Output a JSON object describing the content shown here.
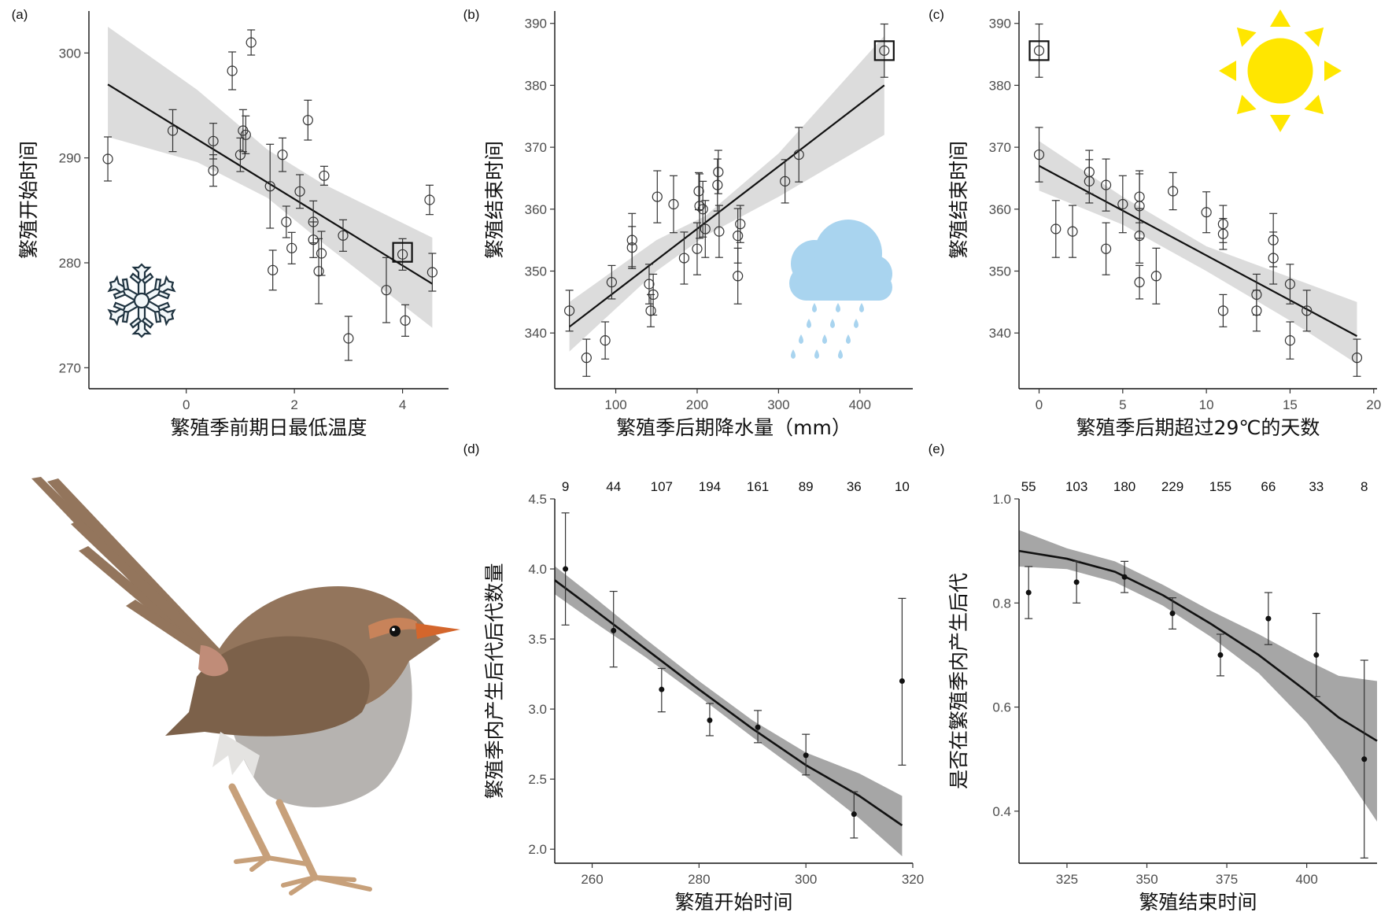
{
  "chart_data": [
    {
      "panel": "(a)",
      "type": "scatter",
      "xlabel": "繁殖季前期日最低温度",
      "ylabel": "繁殖开始时间",
      "xlim": [
        -1.8,
        4.85
      ],
      "ylim": [
        268,
        304
      ],
      "xticks": [
        0,
        2,
        4
      ],
      "yticks": [
        270,
        280,
        290,
        300
      ],
      "points": [
        {
          "x": -1.45,
          "y": 289.9,
          "err": 2.1
        },
        {
          "x": -0.25,
          "y": 292.6,
          "err": 2.0
        },
        {
          "x": 0.5,
          "y": 291.6,
          "err": 1.7
        },
        {
          "x": 0.5,
          "y": 288.8,
          "err": 1.5
        },
        {
          "x": 0.85,
          "y": 298.3,
          "err": 1.8
        },
        {
          "x": 1.0,
          "y": 290.3,
          "err": 1.6
        },
        {
          "x": 1.05,
          "y": 292.6,
          "err": 2.0
        },
        {
          "x": 1.1,
          "y": 292.2,
          "err": 1.8
        },
        {
          "x": 1.2,
          "y": 301.0,
          "err": 1.2
        },
        {
          "x": 1.55,
          "y": 287.3,
          "err": 4.0
        },
        {
          "x": 1.6,
          "y": 279.3,
          "err": 1.9
        },
        {
          "x": 1.78,
          "y": 290.3,
          "err": 1.6
        },
        {
          "x": 1.85,
          "y": 283.9,
          "err": 1.5
        },
        {
          "x": 1.95,
          "y": 281.4,
          "err": 1.5
        },
        {
          "x": 2.1,
          "y": 286.8,
          "err": 1.6
        },
        {
          "x": 2.25,
          "y": 293.6,
          "err": 1.9
        },
        {
          "x": 2.35,
          "y": 283.9,
          "err": 2.0
        },
        {
          "x": 2.35,
          "y": 282.2,
          "err": 1.7
        },
        {
          "x": 2.45,
          "y": 279.2,
          "err": 3.1
        },
        {
          "x": 2.5,
          "y": 280.9,
          "err": 2.1
        },
        {
          "x": 2.55,
          "y": 288.3,
          "err": 0.9
        },
        {
          "x": 2.9,
          "y": 282.6,
          "err": 1.5
        },
        {
          "x": 3.0,
          "y": 272.8,
          "err": 2.1
        },
        {
          "x": 3.7,
          "y": 277.4,
          "err": 3.1
        },
        {
          "x": 4.0,
          "y": 280.8,
          "err": 1.5
        },
        {
          "x": 4.05,
          "y": 274.5,
          "err": 1.5
        },
        {
          "x": 4.5,
          "y": 286.0,
          "err": 1.4
        },
        {
          "x": 4.55,
          "y": 279.1,
          "err": 1.8
        }
      ],
      "highlight": {
        "x": 4.0,
        "y": 281.0
      },
      "fit": {
        "x0": -1.45,
        "y0": 297.0,
        "x1": 4.55,
        "y1": 278.0
      },
      "band": [
        [
          -1.45,
          292.0,
          302.5
        ],
        [
          0.2,
          289.6,
          296.5
        ],
        [
          1.5,
          286.2,
          290.8
        ],
        [
          2.5,
          282.0,
          287.6
        ],
        [
          4.55,
          273.8,
          282.4
        ]
      ]
    },
    {
      "panel": "(b)",
      "type": "scatter",
      "xlabel": "繁殖季后期降水量（mm）",
      "ylabel": "繁殖结束时间",
      "xlim": [
        25,
        465
      ],
      "ylim": [
        331,
        392
      ],
      "xticks": [
        100,
        200,
        300,
        400
      ],
      "yticks": [
        340,
        350,
        360,
        370,
        380,
        390
      ],
      "points": [
        {
          "x": 43,
          "y": 343.6,
          "err": 3.3
        },
        {
          "x": 64,
          "y": 336.0,
          "err": 3.0
        },
        {
          "x": 87,
          "y": 338.8,
          "err": 3.0
        },
        {
          "x": 95,
          "y": 348.2,
          "err": 2.7
        },
        {
          "x": 120,
          "y": 355.0,
          "err": 4.3
        },
        {
          "x": 120,
          "y": 353.8,
          "err": 3.4
        },
        {
          "x": 141,
          "y": 347.9,
          "err": 3.2
        },
        {
          "x": 143,
          "y": 343.6,
          "err": 2.6
        },
        {
          "x": 146,
          "y": 346.2,
          "err": 3.3
        },
        {
          "x": 151,
          "y": 362.0,
          "err": 4.2
        },
        {
          "x": 171,
          "y": 360.8,
          "err": 4.6
        },
        {
          "x": 184,
          "y": 352.1,
          "err": 4.2
        },
        {
          "x": 200,
          "y": 353.6,
          "err": 4.2
        },
        {
          "x": 202,
          "y": 362.9,
          "err": 3.0
        },
        {
          "x": 203,
          "y": 360.5,
          "err": 5.2
        },
        {
          "x": 207,
          "y": 360.0,
          "err": 4.5
        },
        {
          "x": 210,
          "y": 356.8,
          "err": 4.6
        },
        {
          "x": 225,
          "y": 363.9,
          "err": 4.2
        },
        {
          "x": 226,
          "y": 366.0,
          "err": 3.5
        },
        {
          "x": 227,
          "y": 356.4,
          "err": 4.2
        },
        {
          "x": 250,
          "y": 355.7,
          "err": 4.4
        },
        {
          "x": 250,
          "y": 349.2,
          "err": 4.5
        },
        {
          "x": 253,
          "y": 357.6,
          "err": 3.0
        },
        {
          "x": 308,
          "y": 364.5,
          "err": 3.5
        },
        {
          "x": 325,
          "y": 368.8,
          "err": 4.4
        },
        {
          "x": 430,
          "y": 385.6,
          "err": 4.3
        }
      ],
      "highlight": {
        "x": 430,
        "y": 385.6
      },
      "fit": {
        "x0": 43,
        "y0": 341.0,
        "x1": 430,
        "y1": 380.0
      },
      "band": [
        [
          43,
          337.0,
          345.0
        ],
        [
          150,
          350.0,
          355.0
        ],
        [
          210,
          355.7,
          358.9
        ],
        [
          300,
          362.0,
          369.0
        ],
        [
          430,
          372.0,
          388.0
        ]
      ]
    },
    {
      "panel": "(c)",
      "type": "scatter",
      "xlabel": "繁殖季后期超过29℃的天数",
      "ylabel": "繁殖结束时间",
      "xlim": [
        -1.2,
        20.2
      ],
      "ylim": [
        331,
        392
      ],
      "xticks": [
        0,
        5,
        10,
        15,
        20
      ],
      "yticks": [
        340,
        350,
        360,
        370,
        380,
        390
      ],
      "points": [
        {
          "x": 0,
          "y": 385.6,
          "err": 4.3
        },
        {
          "x": 0,
          "y": 368.8,
          "err": 4.4
        },
        {
          "x": 1,
          "y": 356.8,
          "err": 4.6
        },
        {
          "x": 2,
          "y": 356.4,
          "err": 4.2
        },
        {
          "x": 3,
          "y": 366.0,
          "err": 3.5
        },
        {
          "x": 3,
          "y": 364.5,
          "err": 3.5
        },
        {
          "x": 4,
          "y": 363.9,
          "err": 4.2
        },
        {
          "x": 4,
          "y": 353.6,
          "err": 4.2
        },
        {
          "x": 5,
          "y": 360.8,
          "err": 4.6
        },
        {
          "x": 6,
          "y": 362.0,
          "err": 4.2
        },
        {
          "x": 6,
          "y": 360.5,
          "err": 5.2
        },
        {
          "x": 6,
          "y": 355.7,
          "err": 4.4
        },
        {
          "x": 6,
          "y": 348.2,
          "err": 2.7
        },
        {
          "x": 7,
          "y": 349.2,
          "err": 4.5
        },
        {
          "x": 8,
          "y": 362.9,
          "err": 3.0
        },
        {
          "x": 10,
          "y": 359.5,
          "err": 3.3
        },
        {
          "x": 11,
          "y": 357.6,
          "err": 3.0
        },
        {
          "x": 11,
          "y": 356.0,
          "err": 2.5
        },
        {
          "x": 11,
          "y": 343.6,
          "err": 2.6
        },
        {
          "x": 13,
          "y": 346.2,
          "err": 3.3
        },
        {
          "x": 13,
          "y": 343.6,
          "err": 3.3
        },
        {
          "x": 14,
          "y": 355.0,
          "err": 4.3
        },
        {
          "x": 14,
          "y": 352.1,
          "err": 4.2
        },
        {
          "x": 15,
          "y": 347.9,
          "err": 3.2
        },
        {
          "x": 15,
          "y": 338.8,
          "err": 3.0
        },
        {
          "x": 16,
          "y": 343.6,
          "err": 3.3
        },
        {
          "x": 19,
          "y": 336.0,
          "err": 3.0
        }
      ],
      "highlight": {
        "x": 0,
        "y": 385.6
      },
      "fit": {
        "x0": 0,
        "y0": 367.0,
        "x1": 19,
        "y1": 339.5
      },
      "band": [
        [
          0,
          363.0,
          371.0
        ],
        [
          5,
          357.5,
          362.0
        ],
        [
          10,
          350.0,
          354.0
        ],
        [
          15,
          342.0,
          349.0
        ],
        [
          19,
          335.0,
          345.0
        ]
      ],
      "annotation": "sun-icon"
    },
    {
      "panel": "(d)",
      "type": "scatter",
      "xlabel": "繁殖开始时间",
      "ylabel": "繁殖季内产生后代后代数量",
      "xlim": [
        253,
        320
      ],
      "ylim": [
        1.9,
        4.5
      ],
      "xticks": [
        260,
        280,
        300,
        320
      ],
      "yticks": [
        2.0,
        2.5,
        3.0,
        3.5,
        4.0,
        4.5
      ],
      "counts": [
        "9",
        "44",
        "107",
        "194",
        "161",
        "89",
        "36",
        "10"
      ],
      "count_x": [
        255,
        264,
        273,
        282,
        291,
        300,
        309,
        318
      ],
      "points": [
        {
          "x": 255,
          "y": 4.0,
          "lo": 3.6,
          "hi": 4.4
        },
        {
          "x": 264,
          "y": 3.56,
          "lo": 3.3,
          "hi": 3.84
        },
        {
          "x": 273,
          "y": 3.14,
          "lo": 2.98,
          "hi": 3.29
        },
        {
          "x": 282,
          "y": 2.92,
          "lo": 2.81,
          "hi": 3.04
        },
        {
          "x": 291,
          "y": 2.87,
          "lo": 2.76,
          "hi": 2.99
        },
        {
          "x": 300,
          "y": 2.67,
          "lo": 2.53,
          "hi": 2.82
        },
        {
          "x": 309,
          "y": 2.25,
          "lo": 2.08,
          "hi": 2.41
        },
        {
          "x": 318,
          "y": 3.2,
          "lo": 2.6,
          "hi": 3.79
        }
      ],
      "curve": [
        [
          253,
          3.92
        ],
        [
          260,
          3.72
        ],
        [
          270,
          3.43
        ],
        [
          280,
          3.14
        ],
        [
          290,
          2.86
        ],
        [
          300,
          2.6
        ],
        [
          310,
          2.38
        ],
        [
          318,
          2.17
        ]
      ],
      "band": [
        [
          253,
          3.82,
          4.02
        ],
        [
          260,
          3.63,
          3.81
        ],
        [
          270,
          3.37,
          3.5
        ],
        [
          280,
          3.09,
          3.2
        ],
        [
          290,
          2.8,
          2.92
        ],
        [
          300,
          2.52,
          2.69
        ],
        [
          310,
          2.22,
          2.54
        ],
        [
          318,
          1.95,
          2.38
        ]
      ]
    },
    {
      "panel": "(e)",
      "type": "scatter",
      "xlabel": "繁殖结束时间",
      "ylabel": "是否在繁殖季内产生后代",
      "xlim": [
        310,
        422
      ],
      "ylim": [
        0.3,
        1.0
      ],
      "xticks": [
        325,
        350,
        375,
        400
      ],
      "yticks": [
        0.4,
        0.6,
        0.8,
        1.0
      ],
      "counts": [
        "55",
        "103",
        "180",
        "229",
        "155",
        "66",
        "33",
        "8"
      ],
      "count_x": [
        313,
        328,
        343,
        358,
        373,
        388,
        403,
        418
      ],
      "points": [
        {
          "x": 313,
          "y": 0.82,
          "lo": 0.77,
          "hi": 0.87
        },
        {
          "x": 328,
          "y": 0.84,
          "lo": 0.8,
          "hi": 0.88
        },
        {
          "x": 343,
          "y": 0.85,
          "lo": 0.82,
          "hi": 0.88
        },
        {
          "x": 358,
          "y": 0.78,
          "lo": 0.75,
          "hi": 0.81
        },
        {
          "x": 373,
          "y": 0.7,
          "lo": 0.66,
          "hi": 0.74
        },
        {
          "x": 388,
          "y": 0.77,
          "lo": 0.72,
          "hi": 0.82
        },
        {
          "x": 403,
          "y": 0.7,
          "lo": 0.62,
          "hi": 0.78
        },
        {
          "x": 418,
          "y": 0.5,
          "lo": 0.31,
          "hi": 0.69
        }
      ],
      "curve": [
        [
          310,
          0.9
        ],
        [
          325,
          0.885
        ],
        [
          340,
          0.86
        ],
        [
          355,
          0.815
        ],
        [
          370,
          0.76
        ],
        [
          385,
          0.7
        ],
        [
          400,
          0.63
        ],
        [
          410,
          0.58
        ],
        [
          422,
          0.535
        ]
      ],
      "band": [
        [
          310,
          0.87,
          0.94
        ],
        [
          325,
          0.865,
          0.905
        ],
        [
          340,
          0.84,
          0.88
        ],
        [
          355,
          0.795,
          0.835
        ],
        [
          370,
          0.735,
          0.785
        ],
        [
          385,
          0.665,
          0.74
        ],
        [
          400,
          0.57,
          0.69
        ],
        [
          410,
          0.49,
          0.66
        ],
        [
          422,
          0.38,
          0.65
        ]
      ]
    }
  ],
  "colors": {
    "band_light": "#dcdcdc",
    "band_dark": "#a6a6a6",
    "line": "#111111",
    "sun": "#ffe600",
    "cloud": "#a9d4ef",
    "snowflake_stroke": "#1f3340",
    "snowflake_fill": "#f2f7f9",
    "bird_body": "#93755c",
    "bird_belly": "#b6b3b0",
    "bird_beak": "#d4662c",
    "bird_leg": "#c7a07a"
  }
}
